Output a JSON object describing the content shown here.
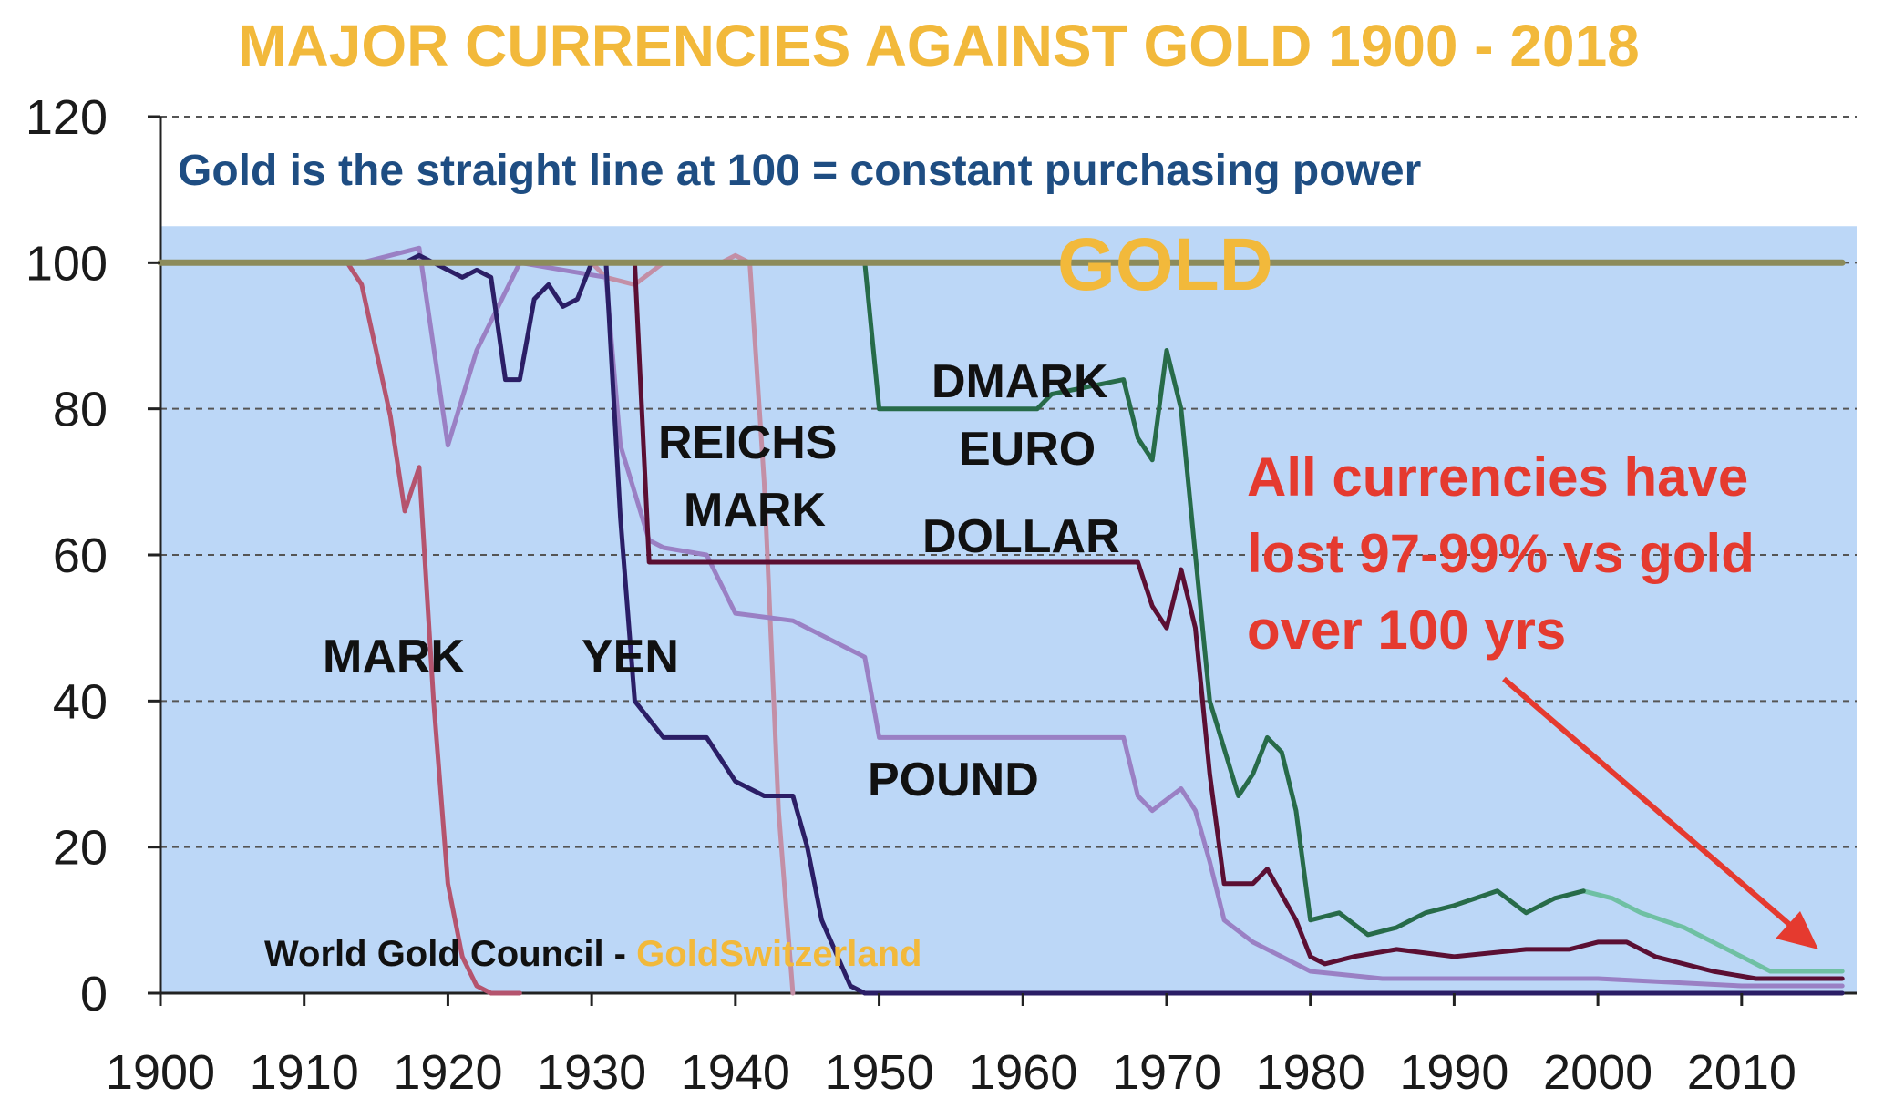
{
  "chart_data": {
    "type": "line",
    "title": "MAJOR CURRENCIES AGAINST GOLD 1900 - 2018",
    "subtitle": "Gold is the straight line at 100 = constant purchasing power",
    "xlabel": "",
    "ylabel": "",
    "xlim": [
      1900,
      2018
    ],
    "ylim": [
      0,
      120
    ],
    "x_ticks": [
      "1900",
      "1910",
      "1920",
      "1930",
      "1940",
      "1950",
      "1960",
      "1970",
      "1980",
      "1990",
      "2000",
      "2010"
    ],
    "y_ticks": [
      "0",
      "20",
      "40",
      "60",
      "80",
      "100",
      "120"
    ],
    "grid": true,
    "labels": {
      "gold": "GOLD",
      "mark": "MARK",
      "yen": "YEN",
      "reichs_1": "REICHS",
      "reichs_2": "MARK",
      "dmark": "DMARK",
      "euro": "EURO",
      "dollar": "DOLLAR",
      "pound": "POUND"
    },
    "annotation": [
      "All currencies have",
      "lost 97-99% vs gold",
      "over 100 yrs"
    ],
    "source": {
      "part1": "World Gold Council - ",
      "part2": "GoldSwitzerland"
    },
    "colors": {
      "plot_background": "#bcd7f7",
      "gold": "#8c8b5b",
      "mark": "#b5546e",
      "reichsmark": "#c38fa6",
      "yen": "#2b1e66",
      "dollar": "#5b0f33",
      "pound": "#9a80c4",
      "dmark": "#276b49",
      "euro": "#6fc0a3",
      "arrow": "#e53a2f"
    },
    "series": [
      {
        "key": "gold",
        "points": [
          [
            1900,
            100
          ],
          [
            2017,
            100
          ]
        ]
      },
      {
        "key": "mark",
        "points": [
          [
            1900,
            100
          ],
          [
            1913,
            100
          ],
          [
            1914,
            97
          ],
          [
            1915,
            88
          ],
          [
            1916,
            79
          ],
          [
            1917,
            66
          ],
          [
            1918,
            72
          ],
          [
            1919,
            40
          ],
          [
            1920,
            15
          ],
          [
            1921,
            5
          ],
          [
            1922,
            1
          ],
          [
            1923,
            0
          ],
          [
            1925,
            0
          ]
        ]
      },
      {
        "key": "reichsmark",
        "points": [
          [
            1924,
            100
          ],
          [
            1930,
            100
          ],
          [
            1931,
            98
          ],
          [
            1933,
            97
          ],
          [
            1935,
            100
          ],
          [
            1937,
            100
          ],
          [
            1939,
            100
          ],
          [
            1940,
            101
          ],
          [
            1941,
            100
          ],
          [
            1942,
            70
          ],
          [
            1943,
            25
          ],
          [
            1944,
            0
          ]
        ]
      },
      {
        "key": "yen",
        "points": [
          [
            1900,
            100
          ],
          [
            1917,
            100
          ],
          [
            1918,
            101
          ],
          [
            1919,
            100
          ],
          [
            1921,
            98
          ],
          [
            1922,
            99
          ],
          [
            1923,
            98
          ],
          [
            1924,
            84
          ],
          [
            1925,
            84
          ],
          [
            1926,
            95
          ],
          [
            1927,
            97
          ],
          [
            1928,
            94
          ],
          [
            1929,
            95
          ],
          [
            1930,
            100
          ],
          [
            1931,
            100
          ],
          [
            1932,
            65
          ],
          [
            1933,
            40
          ],
          [
            1935,
            35
          ],
          [
            1938,
            35
          ],
          [
            1940,
            29
          ],
          [
            1942,
            27
          ],
          [
            1944,
            27
          ],
          [
            1945,
            20
          ],
          [
            1946,
            10
          ],
          [
            1948,
            1
          ],
          [
            1949,
            0
          ],
          [
            2017,
            0
          ]
        ]
      },
      {
        "key": "dollar",
        "points": [
          [
            1900,
            100
          ],
          [
            1933,
            100
          ],
          [
            1934,
            59
          ],
          [
            1968,
            59
          ],
          [
            1969,
            53
          ],
          [
            1970,
            50
          ],
          [
            1971,
            58
          ],
          [
            1972,
            50
          ],
          [
            1973,
            30
          ],
          [
            1974,
            15
          ],
          [
            1976,
            15
          ],
          [
            1977,
            17
          ],
          [
            1979,
            10
          ],
          [
            1980,
            5
          ],
          [
            1981,
            4
          ],
          [
            1983,
            5
          ],
          [
            1986,
            6
          ],
          [
            1990,
            5
          ],
          [
            1995,
            6
          ],
          [
            1998,
            6
          ],
          [
            2000,
            7
          ],
          [
            2002,
            7
          ],
          [
            2004,
            5
          ],
          [
            2006,
            4
          ],
          [
            2008,
            3
          ],
          [
            2011,
            2
          ],
          [
            2017,
            2
          ]
        ]
      },
      {
        "key": "pound",
        "points": [
          [
            1900,
            100
          ],
          [
            1914,
            100
          ],
          [
            1918,
            102
          ],
          [
            1920,
            75
          ],
          [
            1922,
            88
          ],
          [
            1925,
            100
          ],
          [
            1931,
            98
          ],
          [
            1932,
            75
          ],
          [
            1934,
            62
          ],
          [
            1935,
            61
          ],
          [
            1938,
            60
          ],
          [
            1940,
            52
          ],
          [
            1944,
            51
          ],
          [
            1949,
            46
          ],
          [
            1950,
            35
          ],
          [
            1967,
            35
          ],
          [
            1968,
            27
          ],
          [
            1969,
            25
          ],
          [
            1971,
            28
          ],
          [
            1972,
            25
          ],
          [
            1973,
            18
          ],
          [
            1974,
            10
          ],
          [
            1976,
            7
          ],
          [
            1978,
            5
          ],
          [
            1980,
            3
          ],
          [
            1985,
            2
          ],
          [
            1990,
            2
          ],
          [
            2000,
            2
          ],
          [
            2010,
            1
          ],
          [
            2017,
            1
          ]
        ]
      },
      {
        "key": "dmark",
        "points": [
          [
            1949,
            100
          ],
          [
            1950,
            80
          ],
          [
            1961,
            80
          ],
          [
            1962,
            82
          ],
          [
            1967,
            84
          ],
          [
            1968,
            76
          ],
          [
            1969,
            73
          ],
          [
            1970,
            88
          ],
          [
            1971,
            80
          ],
          [
            1972,
            60
          ],
          [
            1973,
            40
          ],
          [
            1975,
            27
          ],
          [
            1976,
            30
          ],
          [
            1977,
            35
          ],
          [
            1978,
            33
          ],
          [
            1979,
            25
          ],
          [
            1980,
            10
          ],
          [
            1982,
            11
          ],
          [
            1984,
            8
          ],
          [
            1986,
            9
          ],
          [
            1988,
            11
          ],
          [
            1990,
            12
          ],
          [
            1993,
            14
          ],
          [
            1995,
            11
          ],
          [
            1997,
            13
          ],
          [
            1999,
            14
          ]
        ]
      },
      {
        "key": "euro",
        "points": [
          [
            1999,
            14
          ],
          [
            2001,
            13
          ],
          [
            2003,
            11
          ],
          [
            2006,
            9
          ],
          [
            2008,
            7
          ],
          [
            2010,
            5
          ],
          [
            2012,
            3
          ],
          [
            2015,
            3
          ],
          [
            2017,
            3
          ]
        ]
      }
    ]
  }
}
